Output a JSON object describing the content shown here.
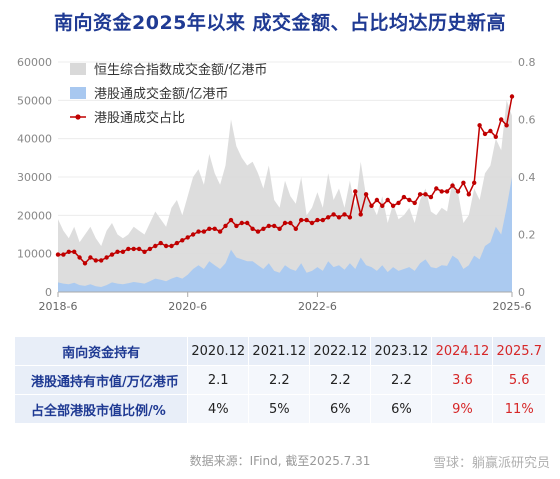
{
  "title": "南向资金2025年以来 成交金额、占比均达历史新高",
  "chart_data": {
    "type": "area",
    "x_tick_labels": [
      "2018-6",
      "2020-6",
      "2022-6",
      "2025-6"
    ],
    "x_tick_positions": [
      0,
      24,
      48,
      84
    ],
    "y_left": {
      "range": [
        0,
        60000
      ],
      "ticks": [
        0,
        10000,
        20000,
        30000,
        40000,
        50000,
        60000
      ]
    },
    "y_right": {
      "range": [
        0,
        0.8
      ],
      "ticks": [
        0,
        0.2,
        0.4,
        0.6,
        0.8
      ]
    },
    "legend_placement": "top-left",
    "series": [
      {
        "name": "恒生综合指数成交金额/亿港币",
        "axis": "left",
        "style": "area",
        "color": "#d9d9d9",
        "values": [
          19000,
          16000,
          14000,
          17000,
          13000,
          15000,
          17000,
          14000,
          12000,
          16000,
          18000,
          15000,
          14000,
          15000,
          17000,
          16000,
          15000,
          18000,
          21000,
          19000,
          17000,
          22000,
          24000,
          20000,
          25000,
          30000,
          32000,
          28000,
          36000,
          31000,
          28000,
          33000,
          45000,
          38000,
          35000,
          33000,
          34000,
          31000,
          27000,
          33000,
          24000,
          22000,
          29000,
          25000,
          23000,
          30000,
          20000,
          22000,
          26000,
          22000,
          31000,
          24000,
          27000,
          22000,
          29000,
          22000,
          34000,
          25000,
          23000,
          20000,
          25000,
          18000,
          23000,
          19000,
          20000,
          22000,
          18000,
          24000,
          27000,
          21000,
          20000,
          22000,
          21000,
          29000,
          26000,
          18000,
          20000,
          27000,
          24000,
          31000,
          33000,
          40000,
          37000,
          50000,
          46000
        ]
      },
      {
        "name": "港股通成交金额/亿港币",
        "axis": "left",
        "style": "area",
        "color": "#a8c8f0",
        "values": [
          2500,
          2200,
          2000,
          2400,
          1800,
          1600,
          2000,
          1500,
          1300,
          1800,
          2500,
          2200,
          2000,
          2300,
          2600,
          2400,
          2200,
          2800,
          3500,
          3200,
          2800,
          3500,
          4000,
          3500,
          4500,
          6000,
          7000,
          6000,
          8000,
          7000,
          6000,
          7500,
          11000,
          9000,
          8500,
          8000,
          8000,
          7000,
          6000,
          7500,
          5500,
          5000,
          7000,
          6000,
          5500,
          7500,
          5000,
          5500,
          6500,
          5500,
          8000,
          6500,
          7000,
          5800,
          7500,
          6000,
          9000,
          7000,
          6500,
          5500,
          7000,
          5200,
          6500,
          5500,
          6000,
          6500,
          5500,
          7500,
          8500,
          6500,
          6200,
          7000,
          6800,
          9500,
          8500,
          6000,
          7000,
          9500,
          8500,
          12000,
          13000,
          17000,
          15000,
          22000,
          30000
        ]
      },
      {
        "name": "港股通成交占比",
        "axis": "right",
        "style": "line",
        "color": "#c00000",
        "values": [
          0.13,
          0.13,
          0.14,
          0.14,
          0.12,
          0.1,
          0.12,
          0.11,
          0.11,
          0.12,
          0.13,
          0.14,
          0.14,
          0.15,
          0.15,
          0.15,
          0.14,
          0.15,
          0.16,
          0.17,
          0.16,
          0.16,
          0.17,
          0.18,
          0.19,
          0.2,
          0.21,
          0.21,
          0.22,
          0.22,
          0.21,
          0.23,
          0.25,
          0.23,
          0.24,
          0.24,
          0.22,
          0.21,
          0.22,
          0.23,
          0.23,
          0.22,
          0.24,
          0.24,
          0.22,
          0.25,
          0.25,
          0.24,
          0.25,
          0.25,
          0.26,
          0.27,
          0.26,
          0.27,
          0.26,
          0.35,
          0.27,
          0.34,
          0.3,
          0.32,
          0.3,
          0.32,
          0.3,
          0.31,
          0.33,
          0.32,
          0.31,
          0.34,
          0.34,
          0.33,
          0.36,
          0.35,
          0.35,
          0.37,
          0.35,
          0.38,
          0.34,
          0.38,
          0.58,
          0.55,
          0.56,
          0.54,
          0.6,
          0.58,
          0.68
        ]
      }
    ]
  },
  "table": {
    "header": [
      "南向资金持有",
      "2020.12",
      "2021.12",
      "2022.12",
      "2023.12",
      "2024.12",
      "2025.7"
    ],
    "rows": [
      {
        "label": "港股通持有市值/万亿港币",
        "values": [
          "2.1",
          "2.2",
          "2.2",
          "2.2",
          "3.6",
          "5.6"
        ]
      },
      {
        "label": "占全部港股市值比例/%",
        "values": [
          "4%",
          "5%",
          "6%",
          "6%",
          "9%",
          "11%"
        ]
      }
    ],
    "highlight_color": "#d62728"
  },
  "source": "数据来源：IFind, 截至2025.7.31",
  "watermark": "雪球：躺赢派研究员"
}
